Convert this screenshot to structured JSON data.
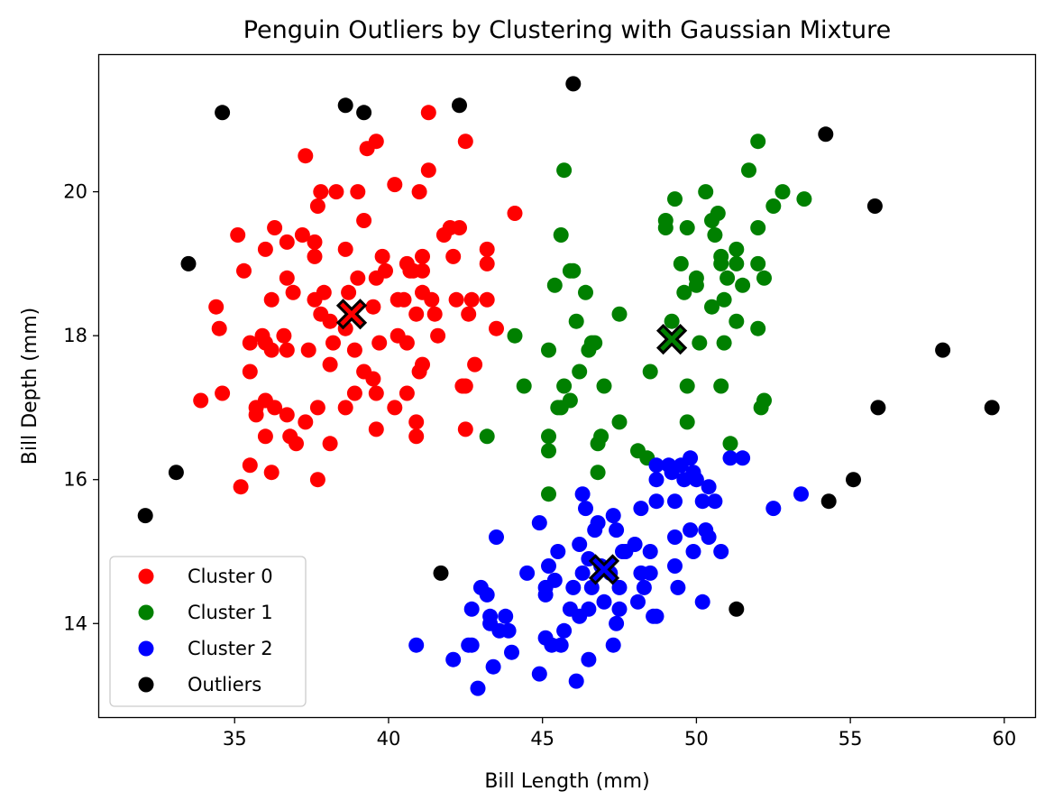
{
  "chart_data": {
    "type": "scatter",
    "title": "Penguin Outliers by Clustering with Gaussian Mixture",
    "xlabel": "Bill Length (mm)",
    "ylabel": "Bill Depth (mm)",
    "xlim": [
      30.6,
      61.0
    ],
    "ylim": [
      12.7,
      21.9
    ],
    "xticks": [
      35,
      40,
      45,
      50,
      55,
      60
    ],
    "yticks": [
      14,
      16,
      18,
      20
    ],
    "grid": false,
    "legend_position": "lower-left",
    "series": [
      {
        "name": "Cluster 0",
        "color": "#ff0000",
        "points": [
          [
            41.3,
            21.1
          ],
          [
            37.3,
            20.5
          ],
          [
            39.3,
            20.6
          ],
          [
            39.6,
            20.7
          ],
          [
            42.5,
            20.7
          ],
          [
            40.2,
            20.1
          ],
          [
            37.8,
            20.0
          ],
          [
            38.3,
            20.0
          ],
          [
            39.0,
            20.0
          ],
          [
            41.0,
            20.0
          ],
          [
            37.7,
            19.8
          ],
          [
            41.3,
            20.3
          ],
          [
            35.1,
            19.4
          ],
          [
            36.3,
            19.5
          ],
          [
            37.2,
            19.4
          ],
          [
            39.2,
            19.6
          ],
          [
            42.0,
            19.5
          ],
          [
            42.3,
            19.5
          ],
          [
            41.8,
            19.4
          ],
          [
            44.1,
            19.7
          ],
          [
            36.0,
            19.2
          ],
          [
            36.7,
            19.3
          ],
          [
            37.6,
            19.3
          ],
          [
            38.6,
            19.2
          ],
          [
            37.6,
            19.1
          ],
          [
            39.8,
            19.1
          ],
          [
            40.6,
            19.0
          ],
          [
            41.1,
            19.1
          ],
          [
            42.1,
            19.1
          ],
          [
            43.2,
            19.2
          ],
          [
            43.2,
            19.0
          ],
          [
            35.3,
            18.9
          ],
          [
            36.7,
            18.8
          ],
          [
            36.9,
            18.6
          ],
          [
            37.9,
            18.6
          ],
          [
            38.7,
            18.6
          ],
          [
            39.0,
            18.8
          ],
          [
            39.6,
            18.8
          ],
          [
            39.9,
            18.9
          ],
          [
            40.7,
            18.9
          ],
          [
            40.8,
            18.9
          ],
          [
            41.1,
            18.9
          ],
          [
            40.5,
            18.5
          ],
          [
            41.4,
            18.5
          ],
          [
            41.1,
            18.6
          ],
          [
            42.2,
            18.5
          ],
          [
            42.7,
            18.5
          ],
          [
            43.2,
            18.5
          ],
          [
            36.2,
            18.5
          ],
          [
            37.6,
            18.5
          ],
          [
            34.4,
            18.4
          ],
          [
            35.5,
            17.9
          ],
          [
            35.9,
            18.0
          ],
          [
            36.6,
            18.0
          ],
          [
            37.8,
            18.3
          ],
          [
            38.1,
            18.2
          ],
          [
            38.6,
            18.1
          ],
          [
            39.5,
            18.4
          ],
          [
            40.3,
            18.5
          ],
          [
            40.9,
            18.3
          ],
          [
            41.5,
            18.3
          ],
          [
            42.6,
            18.3
          ],
          [
            43.5,
            18.1
          ],
          [
            34.5,
            18.1
          ],
          [
            36.0,
            17.9
          ],
          [
            36.2,
            17.8
          ],
          [
            36.7,
            17.8
          ],
          [
            37.4,
            17.8
          ],
          [
            38.2,
            17.9
          ],
          [
            38.9,
            17.8
          ],
          [
            39.7,
            17.9
          ],
          [
            40.6,
            17.9
          ],
          [
            41.0,
            17.5
          ],
          [
            41.6,
            18.0
          ],
          [
            42.8,
            17.6
          ],
          [
            39.5,
            17.4
          ],
          [
            40.3,
            18.0
          ],
          [
            35.5,
            17.5
          ],
          [
            35.7,
            17.0
          ],
          [
            36.0,
            17.1
          ],
          [
            36.3,
            17.0
          ],
          [
            36.7,
            16.9
          ],
          [
            37.3,
            16.8
          ],
          [
            37.7,
            17.0
          ],
          [
            38.1,
            17.6
          ],
          [
            38.6,
            17.0
          ],
          [
            38.9,
            17.2
          ],
          [
            39.2,
            17.5
          ],
          [
            39.6,
            17.2
          ],
          [
            40.2,
            17.0
          ],
          [
            40.6,
            17.2
          ],
          [
            41.1,
            17.6
          ],
          [
            42.5,
            17.3
          ],
          [
            33.9,
            17.1
          ],
          [
            34.6,
            17.2
          ],
          [
            35.7,
            16.9
          ],
          [
            36.0,
            16.6
          ],
          [
            36.8,
            16.6
          ],
          [
            37.0,
            16.5
          ],
          [
            38.1,
            16.5
          ],
          [
            39.6,
            16.7
          ],
          [
            40.9,
            16.6
          ],
          [
            40.9,
            16.8
          ],
          [
            42.5,
            16.7
          ],
          [
            42.4,
            17.3
          ],
          [
            35.5,
            16.2
          ],
          [
            36.2,
            16.1
          ],
          [
            35.2,
            15.9
          ],
          [
            37.7,
            16.0
          ]
        ]
      },
      {
        "name": "Cluster 1",
        "color": "#008000",
        "points": [
          [
            52.0,
            20.7
          ],
          [
            51.7,
            20.3
          ],
          [
            45.7,
            20.3
          ],
          [
            52.8,
            20.0
          ],
          [
            53.5,
            19.9
          ],
          [
            50.3,
            20.0
          ],
          [
            52.5,
            19.8
          ],
          [
            49.3,
            19.9
          ],
          [
            49.0,
            19.6
          ],
          [
            49.0,
            19.5
          ],
          [
            49.7,
            19.5
          ],
          [
            50.5,
            19.6
          ],
          [
            50.7,
            19.7
          ],
          [
            52.0,
            19.5
          ],
          [
            45.6,
            19.4
          ],
          [
            50.6,
            19.4
          ],
          [
            51.3,
            19.2
          ],
          [
            51.3,
            19.0
          ],
          [
            50.8,
            19.1
          ],
          [
            50.8,
            19.0
          ],
          [
            52.0,
            19.0
          ],
          [
            52.2,
            18.8
          ],
          [
            51.0,
            18.8
          ],
          [
            51.5,
            18.7
          ],
          [
            50.0,
            18.8
          ],
          [
            50.0,
            18.7
          ],
          [
            49.5,
            19.0
          ],
          [
            46.0,
            18.9
          ],
          [
            45.9,
            18.9
          ],
          [
            45.4,
            18.7
          ],
          [
            46.4,
            18.6
          ],
          [
            49.6,
            18.6
          ],
          [
            50.9,
            18.5
          ],
          [
            50.5,
            18.4
          ],
          [
            47.5,
            18.3
          ],
          [
            46.1,
            18.2
          ],
          [
            49.2,
            18.2
          ],
          [
            51.3,
            18.2
          ],
          [
            52.0,
            18.1
          ],
          [
            44.1,
            18.0
          ],
          [
            45.2,
            17.8
          ],
          [
            46.5,
            17.8
          ],
          [
            46.7,
            17.9
          ],
          [
            46.6,
            17.9
          ],
          [
            50.1,
            17.9
          ],
          [
            50.9,
            17.9
          ],
          [
            46.2,
            17.5
          ],
          [
            48.5,
            17.5
          ],
          [
            44.4,
            17.3
          ],
          [
            45.7,
            17.3
          ],
          [
            45.6,
            17.0
          ],
          [
            45.5,
            17.0
          ],
          [
            45.9,
            17.1
          ],
          [
            47.0,
            17.3
          ],
          [
            49.7,
            17.3
          ],
          [
            50.8,
            17.3
          ],
          [
            52.2,
            17.1
          ],
          [
            52.1,
            17.0
          ],
          [
            47.5,
            16.8
          ],
          [
            49.7,
            16.8
          ],
          [
            43.2,
            16.6
          ],
          [
            45.2,
            16.6
          ],
          [
            46.8,
            16.5
          ],
          [
            46.9,
            16.6
          ],
          [
            45.2,
            16.4
          ],
          [
            48.1,
            16.4
          ],
          [
            48.4,
            16.3
          ],
          [
            51.1,
            16.5
          ],
          [
            46.8,
            16.1
          ],
          [
            45.2,
            15.8
          ]
        ]
      },
      {
        "name": "Cluster 2",
        "color": "#0000ff",
        "points": [
          [
            51.1,
            16.3
          ],
          [
            51.5,
            16.3
          ],
          [
            49.8,
            16.3
          ],
          [
            49.1,
            16.2
          ],
          [
            48.7,
            16.2
          ],
          [
            49.5,
            16.2
          ],
          [
            50.0,
            16.0
          ],
          [
            49.9,
            16.1
          ],
          [
            49.2,
            16.1
          ],
          [
            48.7,
            16.0
          ],
          [
            49.6,
            16.0
          ],
          [
            50.4,
            15.9
          ],
          [
            50.6,
            15.7
          ],
          [
            50.2,
            15.7
          ],
          [
            53.4,
            15.8
          ],
          [
            52.5,
            15.6
          ],
          [
            49.3,
            15.7
          ],
          [
            48.7,
            15.7
          ],
          [
            48.2,
            15.6
          ],
          [
            46.3,
            15.8
          ],
          [
            46.4,
            15.6
          ],
          [
            44.9,
            15.4
          ],
          [
            43.5,
            15.2
          ],
          [
            47.3,
            15.5
          ],
          [
            46.8,
            15.4
          ],
          [
            46.7,
            15.3
          ],
          [
            47.4,
            15.3
          ],
          [
            49.8,
            15.3
          ],
          [
            50.3,
            15.3
          ],
          [
            50.4,
            15.2
          ],
          [
            49.3,
            15.2
          ],
          [
            49.9,
            15.0
          ],
          [
            50.8,
            15.0
          ],
          [
            48.0,
            15.1
          ],
          [
            48.5,
            15.0
          ],
          [
            47.7,
            15.0
          ],
          [
            47.6,
            15.0
          ],
          [
            46.2,
            15.1
          ],
          [
            45.5,
            15.0
          ],
          [
            46.5,
            14.9
          ],
          [
            46.9,
            14.8
          ],
          [
            47.2,
            14.7
          ],
          [
            46.3,
            14.7
          ],
          [
            45.2,
            14.8
          ],
          [
            45.4,
            14.6
          ],
          [
            45.1,
            14.5
          ],
          [
            45.1,
            14.4
          ],
          [
            44.5,
            14.7
          ],
          [
            46.0,
            14.5
          ],
          [
            46.6,
            14.5
          ],
          [
            47.5,
            14.5
          ],
          [
            47.0,
            14.3
          ],
          [
            46.5,
            14.2
          ],
          [
            45.9,
            14.2
          ],
          [
            46.2,
            14.1
          ],
          [
            48.1,
            14.3
          ],
          [
            48.3,
            14.5
          ],
          [
            48.6,
            14.1
          ],
          [
            48.7,
            14.1
          ],
          [
            49.4,
            14.5
          ],
          [
            49.3,
            14.8
          ],
          [
            48.5,
            14.7
          ],
          [
            48.2,
            14.7
          ],
          [
            50.2,
            14.3
          ],
          [
            43.0,
            14.5
          ],
          [
            43.2,
            14.4
          ],
          [
            43.3,
            14.1
          ],
          [
            43.3,
            14.0
          ],
          [
            42.7,
            14.2
          ],
          [
            43.6,
            13.9
          ],
          [
            43.9,
            13.9
          ],
          [
            43.8,
            14.1
          ],
          [
            44.9,
            13.3
          ],
          [
            45.1,
            13.8
          ],
          [
            45.3,
            13.7
          ],
          [
            45.6,
            13.7
          ],
          [
            45.7,
            13.9
          ],
          [
            46.5,
            13.5
          ],
          [
            47.3,
            13.7
          ],
          [
            47.4,
            14.0
          ],
          [
            47.5,
            14.2
          ],
          [
            46.1,
            13.2
          ],
          [
            42.9,
            13.1
          ],
          [
            43.4,
            13.4
          ],
          [
            42.1,
            13.5
          ],
          [
            42.6,
            13.7
          ],
          [
            42.7,
            13.7
          ],
          [
            44.0,
            13.6
          ],
          [
            40.9,
            13.7
          ]
        ]
      },
      {
        "name": "Outliers",
        "color": "#000000",
        "points": [
          [
            46.0,
            21.5
          ],
          [
            34.6,
            21.1
          ],
          [
            38.6,
            21.2
          ],
          [
            39.2,
            21.1
          ],
          [
            42.3,
            21.2
          ],
          [
            54.2,
            20.8
          ],
          [
            55.8,
            19.8
          ],
          [
            33.5,
            19.0
          ],
          [
            58.0,
            17.8
          ],
          [
            55.9,
            17.0
          ],
          [
            59.6,
            17.0
          ],
          [
            33.1,
            16.1
          ],
          [
            55.1,
            16.0
          ],
          [
            54.3,
            15.7
          ],
          [
            32.1,
            15.5
          ],
          [
            41.7,
            14.7
          ],
          [
            51.3,
            14.2
          ]
        ]
      }
    ],
    "centroids": [
      {
        "cluster": "Cluster 0",
        "color": "#ff0000",
        "x": 38.8,
        "y": 18.3
      },
      {
        "cluster": "Cluster 1",
        "color": "#008000",
        "x": 49.2,
        "y": 17.95
      },
      {
        "cluster": "Cluster 2",
        "color": "#0000ff",
        "x": 47.0,
        "y": 14.75
      }
    ]
  }
}
